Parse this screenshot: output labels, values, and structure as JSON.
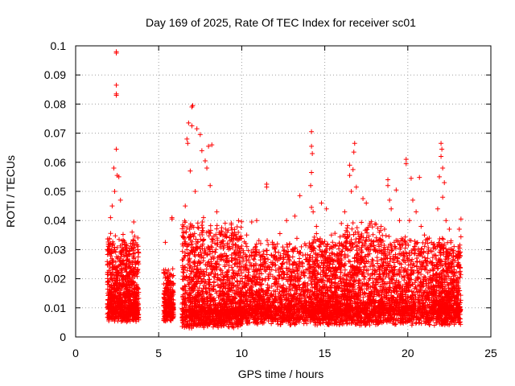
{
  "chart_data": {
    "type": "scatter",
    "title": "Day 169 of 2025, Rate Of TEC Index for receiver sc01",
    "xlabel": "GPS time / hours",
    "ylabel": "ROTI / TECUs",
    "xlim": [
      0,
      25
    ],
    "ylim": [
      0,
      0.1
    ],
    "xticks": [
      0,
      5,
      10,
      15,
      20,
      25
    ],
    "yticks": [
      0,
      0.01,
      0.02,
      0.03,
      0.04,
      0.05,
      0.06,
      0.07,
      0.08,
      0.09,
      0.1
    ],
    "xtick_labels": [
      "0",
      "5",
      "10",
      "15",
      "20",
      "25"
    ],
    "ytick_labels": [
      "0",
      "0.01",
      "0.02",
      "0.03",
      "0.04",
      "0.05",
      "0.06",
      "0.07",
      "0.08",
      "0.09",
      "0.1"
    ],
    "grid": true,
    "marker": "+",
    "marker_color": "#ff0000",
    "series": [
      {
        "points": [
          [
            2.45,
            0.098
          ],
          [
            2.45,
            0.0975
          ],
          [
            2.45,
            0.0865
          ],
          [
            2.45,
            0.0835
          ],
          [
            2.45,
            0.083
          ],
          [
            2.45,
            0.0645
          ],
          [
            2.3,
            0.058
          ],
          [
            2.5,
            0.0555
          ],
          [
            2.6,
            0.055
          ],
          [
            2.35,
            0.05
          ],
          [
            2.2,
            0.045
          ],
          [
            2.1,
            0.041
          ],
          [
            2.7,
            0.047
          ],
          [
            3.5,
            0.0395
          ],
          [
            3.4,
            0.036
          ],
          [
            2.0,
            0.031
          ],
          [
            2.8,
            0.033
          ],
          [
            3.0,
            0.028
          ],
          [
            3.6,
            0.026
          ],
          [
            2.2,
            0.024
          ],
          [
            2.5,
            0.022
          ],
          [
            3.2,
            0.02
          ],
          [
            2.0,
            0.018
          ],
          [
            2.7,
            0.016
          ],
          [
            3.7,
            0.014
          ],
          [
            2.1,
            0.012
          ],
          [
            3.0,
            0.011
          ],
          [
            2.4,
            0.009
          ],
          [
            3.5,
            0.008
          ],
          [
            2.0,
            0.006
          ],
          [
            5.4,
            0.0325
          ],
          [
            5.6,
            0.0195
          ],
          [
            5.5,
            0.015
          ],
          [
            5.7,
            0.012
          ],
          [
            5.4,
            0.01
          ],
          [
            5.6,
            0.008
          ],
          [
            5.8,
            0.041
          ],
          [
            5.8,
            0.0405
          ],
          [
            5.5,
            0.006
          ],
          [
            6.8,
            0.0735
          ],
          [
            7.0,
            0.0725
          ],
          [
            7.0,
            0.079
          ],
          [
            7.05,
            0.0795
          ],
          [
            6.7,
            0.068
          ],
          [
            6.75,
            0.0665
          ],
          [
            7.3,
            0.0715
          ],
          [
            7.5,
            0.0695
          ],
          [
            7.6,
            0.064
          ],
          [
            7.8,
            0.0605
          ],
          [
            8.0,
            0.0655
          ],
          [
            8.2,
            0.066
          ],
          [
            7.9,
            0.058
          ],
          [
            6.9,
            0.057
          ],
          [
            8.1,
            0.052
          ],
          [
            7.2,
            0.05
          ],
          [
            6.6,
            0.045
          ],
          [
            8.5,
            0.043
          ],
          [
            7.7,
            0.041
          ],
          [
            6.5,
            0.038
          ],
          [
            8.8,
            0.036
          ],
          [
            9.3,
            0.033
          ],
          [
            6.7,
            0.03
          ],
          [
            9.8,
            0.031
          ],
          [
            7.4,
            0.026
          ],
          [
            8.3,
            0.024
          ],
          [
            9.0,
            0.021
          ],
          [
            6.8,
            0.018
          ],
          [
            9.5,
            0.016
          ],
          [
            7.6,
            0.013
          ],
          [
            8.4,
            0.011
          ],
          [
            9.9,
            0.009
          ],
          [
            6.6,
            0.007
          ],
          [
            7.2,
            0.005
          ],
          [
            8.8,
            0.004
          ],
          [
            10.6,
            0.0395
          ],
          [
            10.9,
            0.04
          ],
          [
            11.5,
            0.0525
          ],
          [
            11.5,
            0.0515
          ],
          [
            10.3,
            0.035
          ],
          [
            11.8,
            0.028
          ],
          [
            12.3,
            0.0355
          ],
          [
            12.7,
            0.04
          ],
          [
            13.2,
            0.0415
          ],
          [
            12.0,
            0.027
          ],
          [
            13.5,
            0.0485
          ],
          [
            13.8,
            0.032
          ],
          [
            10.5,
            0.02
          ],
          [
            11.2,
            0.018
          ],
          [
            12.5,
            0.016
          ],
          [
            13.0,
            0.014
          ],
          [
            10.1,
            0.012
          ],
          [
            11.7,
            0.01
          ],
          [
            12.9,
            0.009
          ],
          [
            13.6,
            0.007
          ],
          [
            14.2,
            0.0705
          ],
          [
            14.2,
            0.0655
          ],
          [
            14.25,
            0.063
          ],
          [
            14.2,
            0.0565
          ],
          [
            14.15,
            0.052
          ],
          [
            14.2,
            0.0445
          ],
          [
            14.3,
            0.043
          ],
          [
            14.8,
            0.046
          ],
          [
            15.1,
            0.044
          ],
          [
            14.5,
            0.038
          ],
          [
            15.4,
            0.035
          ],
          [
            14.1,
            0.031
          ],
          [
            15.0,
            0.027
          ],
          [
            14.6,
            0.022
          ],
          [
            15.3,
            0.019
          ],
          [
            14.0,
            0.016
          ],
          [
            14.9,
            0.013
          ],
          [
            15.5,
            0.011
          ],
          [
            14.4,
            0.009
          ],
          [
            15.2,
            0.007
          ],
          [
            16.5,
            0.059
          ],
          [
            16.5,
            0.0555
          ],
          [
            16.8,
            0.0665
          ],
          [
            16.75,
            0.0635
          ],
          [
            16.7,
            0.0575
          ],
          [
            16.6,
            0.05
          ],
          [
            16.9,
            0.0515
          ],
          [
            17.3,
            0.0475
          ],
          [
            17.5,
            0.046
          ],
          [
            16.2,
            0.043
          ],
          [
            16.0,
            0.039
          ],
          [
            17.0,
            0.036
          ],
          [
            17.8,
            0.033
          ],
          [
            16.4,
            0.03
          ],
          [
            18.2,
            0.029
          ],
          [
            15.8,
            0.026
          ],
          [
            17.6,
            0.023
          ],
          [
            16.1,
            0.02
          ],
          [
            18.0,
            0.017
          ],
          [
            16.9,
            0.014
          ],
          [
            15.7,
            0.012
          ],
          [
            17.4,
            0.01
          ],
          [
            18.3,
            0.008
          ],
          [
            16.3,
            0.006
          ],
          [
            17.1,
            0.004
          ],
          [
            18.8,
            0.054
          ],
          [
            18.8,
            0.052
          ],
          [
            19.3,
            0.0505
          ],
          [
            18.9,
            0.047
          ],
          [
            19.0,
            0.044
          ],
          [
            19.5,
            0.04
          ],
          [
            18.6,
            0.037
          ],
          [
            19.8,
            0.033
          ],
          [
            18.7,
            0.028
          ],
          [
            19.6,
            0.025
          ],
          [
            19.0,
            0.02
          ],
          [
            18.5,
            0.016
          ],
          [
            19.7,
            0.013
          ],
          [
            18.9,
            0.011
          ],
          [
            19.4,
            0.008
          ],
          [
            19.9,
            0.061
          ],
          [
            19.9,
            0.0595
          ],
          [
            20.2,
            0.0545
          ],
          [
            20.7,
            0.0548
          ],
          [
            20.3,
            0.047
          ],
          [
            20.5,
            0.043
          ],
          [
            20.1,
            0.04
          ],
          [
            20.8,
            0.038
          ],
          [
            21.0,
            0.035
          ],
          [
            20.4,
            0.031
          ],
          [
            21.2,
            0.027
          ],
          [
            20.6,
            0.022
          ],
          [
            21.4,
            0.02
          ],
          [
            20.0,
            0.017
          ],
          [
            20.9,
            0.014
          ],
          [
            21.5,
            0.012
          ],
          [
            20.3,
            0.01
          ],
          [
            21.1,
            0.008
          ],
          [
            20.7,
            0.005
          ],
          [
            22.0,
            0.0665
          ],
          [
            22.05,
            0.0645
          ],
          [
            22.0,
            0.062
          ],
          [
            22.1,
            0.058
          ],
          [
            21.9,
            0.055
          ],
          [
            22.2,
            0.053
          ],
          [
            22.1,
            0.048
          ],
          [
            21.8,
            0.044
          ],
          [
            22.3,
            0.04
          ],
          [
            22.5,
            0.037
          ],
          [
            22.6,
            0.033
          ],
          [
            22.4,
            0.029
          ],
          [
            23.2,
            0.0405
          ],
          [
            23.1,
            0.037
          ],
          [
            21.9,
            0.025
          ],
          [
            22.8,
            0.022
          ],
          [
            22.2,
            0.019
          ],
          [
            23.0,
            0.016
          ],
          [
            21.7,
            0.013
          ],
          [
            22.6,
            0.011
          ],
          [
            23.1,
            0.009
          ],
          [
            22.0,
            0.007
          ],
          [
            22.9,
            0.005
          ],
          [
            21.6,
            0.004
          ]
        ]
      }
    ],
    "dense_bands": [
      {
        "x": [
          1.9,
          3.8
        ],
        "y_base": [
          0.005,
          0.03
        ],
        "count": 900
      },
      {
        "x": [
          5.3,
          5.9
        ],
        "y_base": [
          0.005,
          0.018
        ],
        "count": 250
      },
      {
        "x": [
          6.4,
          10.0
        ],
        "y_base": [
          0.003,
          0.035
        ],
        "count": 1400
      },
      {
        "x": [
          10.0,
          14.0
        ],
        "y_base": [
          0.004,
          0.028
        ],
        "count": 1200
      },
      {
        "x": [
          14.0,
          16.0
        ],
        "y_base": [
          0.004,
          0.03
        ],
        "count": 800
      },
      {
        "x": [
          16.0,
          18.5
        ],
        "y_base": [
          0.004,
          0.035
        ],
        "count": 900
      },
      {
        "x": [
          18.5,
          21.5
        ],
        "y_base": [
          0.004,
          0.03
        ],
        "count": 900
      },
      {
        "x": [
          21.5,
          23.2
        ],
        "y_base": [
          0.004,
          0.03
        ],
        "count": 700
      }
    ]
  }
}
